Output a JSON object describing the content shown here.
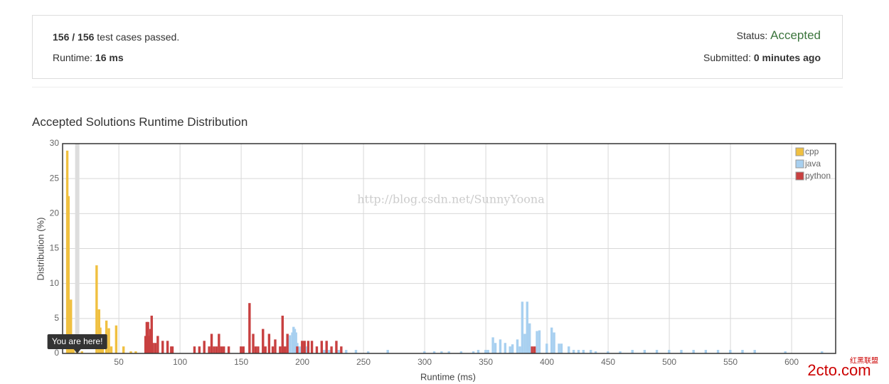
{
  "header": {
    "passed": "156 / 156",
    "passed_text": "test cases passed.",
    "runtime_label": "Runtime:",
    "runtime_value": "16 ms",
    "status_label": "Status:",
    "status_value": "Accepted",
    "submitted_label": "Submitted:",
    "submitted_value": "0 minutes ago"
  },
  "watermark": "http://blog.csdn.net/SunnyYoona",
  "logo": {
    "name": "红黑联盟",
    "site": "2cto.com"
  },
  "chart_data": {
    "type": "histogram",
    "title": "Accepted Solutions Runtime Distribution",
    "x_label": "Runtime (ms)",
    "y_label": "Distribution (%)",
    "xlim": [
      4,
      636
    ],
    "ylim": [
      0,
      30
    ],
    "xticks": [
      50,
      100,
      150,
      200,
      250,
      300,
      350,
      400,
      450,
      500,
      550,
      600
    ],
    "yticks": [
      0,
      5,
      10,
      15,
      20,
      25,
      30
    ],
    "grid": true,
    "legend": "top-right",
    "marker": {
      "x": 16,
      "label": "You are here!"
    },
    "series": [
      {
        "name": "cpp",
        "color": "#f0c040",
        "x": [
          8,
          9,
          10,
          11,
          12,
          13,
          16,
          20,
          32,
          34,
          35,
          36,
          37,
          40,
          42,
          44,
          48,
          54,
          60,
          64
        ],
        "values": [
          29,
          22.5,
          6.5,
          7.7,
          1.5,
          1,
          0.3,
          0.3,
          12.6,
          6.3,
          3.7,
          2.7,
          1.6,
          4.7,
          3.6,
          1,
          4,
          1,
          0.3,
          0.3
        ]
      },
      {
        "name": "java",
        "color": "#a8d0f0",
        "x": [
          185,
          188,
          190,
          192,
          193,
          194,
          195,
          196,
          198,
          204,
          218,
          222,
          230,
          236,
          244,
          254,
          270,
          300,
          308,
          314,
          320,
          330,
          340,
          344,
          350,
          352,
          356,
          358,
          362,
          366,
          370,
          372,
          376,
          378,
          380,
          382,
          384,
          386,
          392,
          394,
          400,
          404,
          406,
          410,
          412,
          418,
          422,
          426,
          430,
          436,
          440,
          450,
          460,
          470,
          480,
          490,
          500,
          510,
          520,
          530,
          540,
          550,
          560,
          570,
          595,
          625
        ],
        "values": [
          1,
          2,
          2.6,
          3,
          3.8,
          3.5,
          3,
          1.5,
          1,
          1,
          0.5,
          0.5,
          0.5,
          0.5,
          0.5,
          0.3,
          0.5,
          0.3,
          0.3,
          0.3,
          0.3,
          0.3,
          0.3,
          0.5,
          0.5,
          0.5,
          2.3,
          1.5,
          2,
          1.5,
          1,
          1.3,
          2,
          1,
          7.4,
          2.8,
          7.4,
          4.3,
          3.2,
          3.3,
          1.4,
          3.7,
          3,
          1.4,
          1.4,
          1,
          0.5,
          0.5,
          0.5,
          0.5,
          0.3,
          0.3,
          0.3,
          0.5,
          0.5,
          0.5,
          0.5,
          0.5,
          0.5,
          0.5,
          0.5,
          0.5,
          0.5,
          0.5,
          0.3,
          0.3
        ]
      },
      {
        "name": "python",
        "color": "#c84040",
        "x": [
          72,
          73,
          74,
          75,
          76,
          77,
          78,
          80,
          82,
          86,
          90,
          93,
          94,
          112,
          116,
          120,
          124,
          126,
          128,
          130,
          132,
          134,
          136,
          140,
          150,
          152,
          157,
          160,
          162,
          164,
          168,
          170,
          173,
          176,
          178,
          182,
          184,
          186,
          188,
          196,
          200,
          202,
          205,
          208,
          212,
          216,
          220,
          224,
          228,
          232,
          388,
          390
        ],
        "values": [
          2.5,
          4.5,
          4.5,
          2.5,
          3.5,
          5.4,
          1.5,
          1.5,
          2.5,
          1.8,
          1.8,
          1,
          1,
          1,
          1,
          1.8,
          1,
          2.8,
          1,
          1,
          2.8,
          1,
          1,
          1,
          1,
          1,
          7.2,
          2.8,
          1,
          1,
          3.5,
          1,
          2.8,
          1,
          2,
          1,
          5.4,
          1,
          2.8,
          1,
          1.8,
          1.8,
          1.8,
          1.8,
          1,
          1.8,
          1.8,
          1,
          1.8,
          1,
          1,
          1
        ]
      }
    ]
  }
}
